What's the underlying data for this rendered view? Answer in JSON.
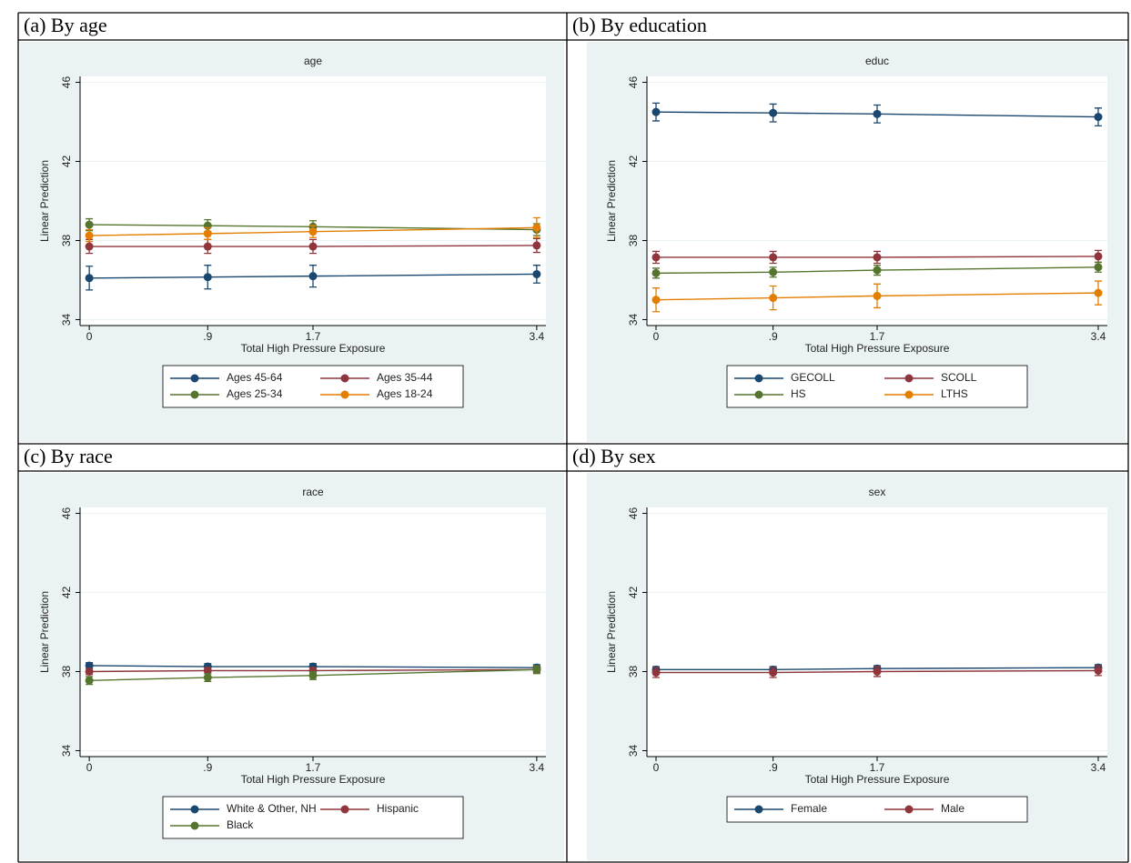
{
  "chart_data": [
    {
      "type": "line",
      "panel": "(a) By age",
      "title": "age",
      "xlabel": "Total High Pressure Exposure",
      "ylabel": "Linear Prediction",
      "x": [
        0,
        0.9,
        1.7,
        3.4
      ],
      "xlim": [
        -0.07,
        3.47
      ],
      "xticks": [
        0,
        {
          "value": 0.9,
          "label": ".9"
        },
        1.7,
        3.4
      ],
      "ylim": [
        33.7,
        46.3
      ],
      "yticks": [
        34,
        38,
        42,
        46
      ],
      "grid": true,
      "series": [
        {
          "name": "Ages 45-64",
          "color": "#1a476f",
          "values": [
            36.1,
            36.15,
            36.2,
            36.3
          ],
          "errors": [
            0.6,
            0.6,
            0.55,
            0.45
          ]
        },
        {
          "name": "Ages 35-44",
          "color": "#90353b",
          "values": [
            37.7,
            37.7,
            37.7,
            37.75
          ],
          "errors": [
            0.35,
            0.35,
            0.35,
            0.35
          ]
        },
        {
          "name": "Ages 25-34",
          "color": "#55752f",
          "values": [
            38.8,
            38.75,
            38.7,
            38.55
          ],
          "errors": [
            0.3,
            0.3,
            0.3,
            0.3
          ]
        },
        {
          "name": "Ages 18-24",
          "color": "#e37e00",
          "values": [
            38.25,
            38.35,
            38.45,
            38.65
          ],
          "errors": [
            0.3,
            0.3,
            0.3,
            0.5
          ]
        }
      ]
    },
    {
      "type": "line",
      "panel": "(b) By education",
      "title": "educ",
      "xlabel": "Total High Pressure Exposure",
      "ylabel": "Linear Prediction",
      "x": [
        0,
        0.9,
        1.7,
        3.4
      ],
      "xlim": [
        -0.07,
        3.47
      ],
      "xticks": [
        0,
        {
          "value": 0.9,
          "label": ".9"
        },
        1.7,
        3.4
      ],
      "ylim": [
        33.7,
        46.3
      ],
      "yticks": [
        34,
        38,
        42,
        46
      ],
      "grid": true,
      "series": [
        {
          "name": "GECOLL",
          "color": "#1a476f",
          "values": [
            44.5,
            44.45,
            44.4,
            44.25
          ],
          "errors": [
            0.45,
            0.45,
            0.45,
            0.45
          ]
        },
        {
          "name": "SCOLL",
          "color": "#90353b",
          "values": [
            37.15,
            37.15,
            37.15,
            37.2
          ],
          "errors": [
            0.3,
            0.3,
            0.3,
            0.3
          ]
        },
        {
          "name": "HS",
          "color": "#55752f",
          "values": [
            36.35,
            36.4,
            36.5,
            36.65
          ],
          "errors": [
            0.25,
            0.25,
            0.25,
            0.25
          ]
        },
        {
          "name": "LTHS",
          "color": "#e37e00",
          "values": [
            35.0,
            35.1,
            35.2,
            35.35
          ],
          "errors": [
            0.6,
            0.6,
            0.6,
            0.6
          ]
        }
      ]
    },
    {
      "type": "line",
      "panel": "(c) By race",
      "title": "race",
      "xlabel": "Total High Pressure Exposure",
      "ylabel": "Linear Prediction",
      "x": [
        0,
        0.9,
        1.7,
        3.4
      ],
      "xlim": [
        -0.07,
        3.47
      ],
      "xticks": [
        0,
        {
          "value": 0.9,
          "label": ".9"
        },
        1.7,
        3.4
      ],
      "ylim": [
        33.7,
        46.3
      ],
      "yticks": [
        34,
        38,
        42,
        46
      ],
      "grid": true,
      "series": [
        {
          "name": "White & Other, NH",
          "color": "#1a476f",
          "values": [
            38.3,
            38.25,
            38.25,
            38.2
          ],
          "errors": [
            0.15,
            0.15,
            0.15,
            0.15
          ]
        },
        {
          "name": "Hispanic",
          "color": "#90353b",
          "values": [
            38.0,
            38.05,
            38.05,
            38.1
          ],
          "errors": [
            0.15,
            0.15,
            0.15,
            0.15
          ]
        },
        {
          "name": "Black",
          "color": "#55752f",
          "values": [
            37.55,
            37.7,
            37.8,
            38.1
          ],
          "errors": [
            0.2,
            0.2,
            0.2,
            0.2
          ]
        }
      ]
    },
    {
      "type": "line",
      "panel": "(d) By sex",
      "title": "sex",
      "xlabel": "Total High Pressure Exposure",
      "ylabel": "Linear Prediction",
      "x": [
        0,
        0.9,
        1.7,
        3.4
      ],
      "xlim": [
        -0.07,
        3.47
      ],
      "xticks": [
        0,
        {
          "value": 0.9,
          "label": ".9"
        },
        1.7,
        3.4
      ],
      "ylim": [
        33.7,
        46.3
      ],
      "yticks": [
        34,
        38,
        42,
        46
      ],
      "grid": true,
      "series": [
        {
          "name": "Female",
          "color": "#1a476f",
          "values": [
            38.1,
            38.1,
            38.15,
            38.2
          ],
          "errors": [
            0.15,
            0.15,
            0.15,
            0.15
          ]
        },
        {
          "name": "Male",
          "color": "#90353b",
          "values": [
            37.95,
            37.95,
            38.0,
            38.05
          ],
          "errors": [
            0.25,
            0.25,
            0.25,
            0.25
          ]
        }
      ]
    }
  ]
}
